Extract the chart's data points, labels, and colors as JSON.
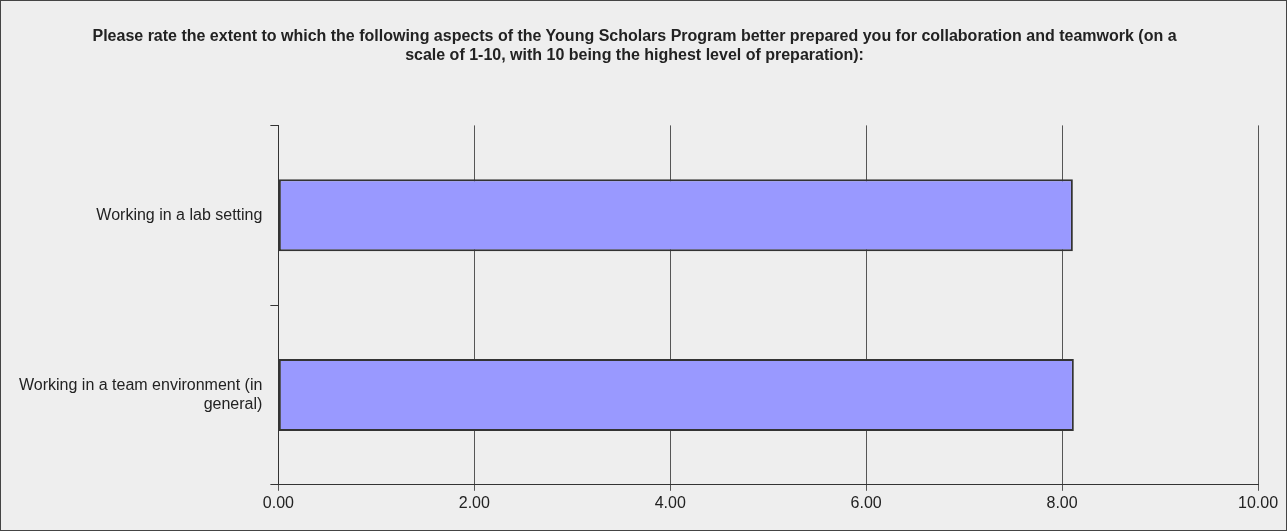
{
  "chart_data": {
    "type": "bar",
    "orientation": "horizontal",
    "title": "Please rate the extent to which the following aspects of the Young Scholars Program better prepared you for collaboration and teamwork (on a scale of 1-10, with 10 being the highest level of preparation):",
    "categories": [
      "Working in a lab setting",
      "Working in a team environment (in general)"
    ],
    "values": [
      8.11,
      8.12
    ],
    "color": "#9999ff",
    "xlim": [
      0,
      10
    ],
    "xticks": [
      {
        "value": 0,
        "label": "0.00"
      },
      {
        "value": 2,
        "label": "2.00"
      },
      {
        "value": 4,
        "label": "4.00"
      },
      {
        "value": 6,
        "label": "6.00"
      },
      {
        "value": 8,
        "label": "8.00"
      },
      {
        "value": 10,
        "label": "10.00"
      }
    ],
    "grid": "x",
    "legend": false
  }
}
